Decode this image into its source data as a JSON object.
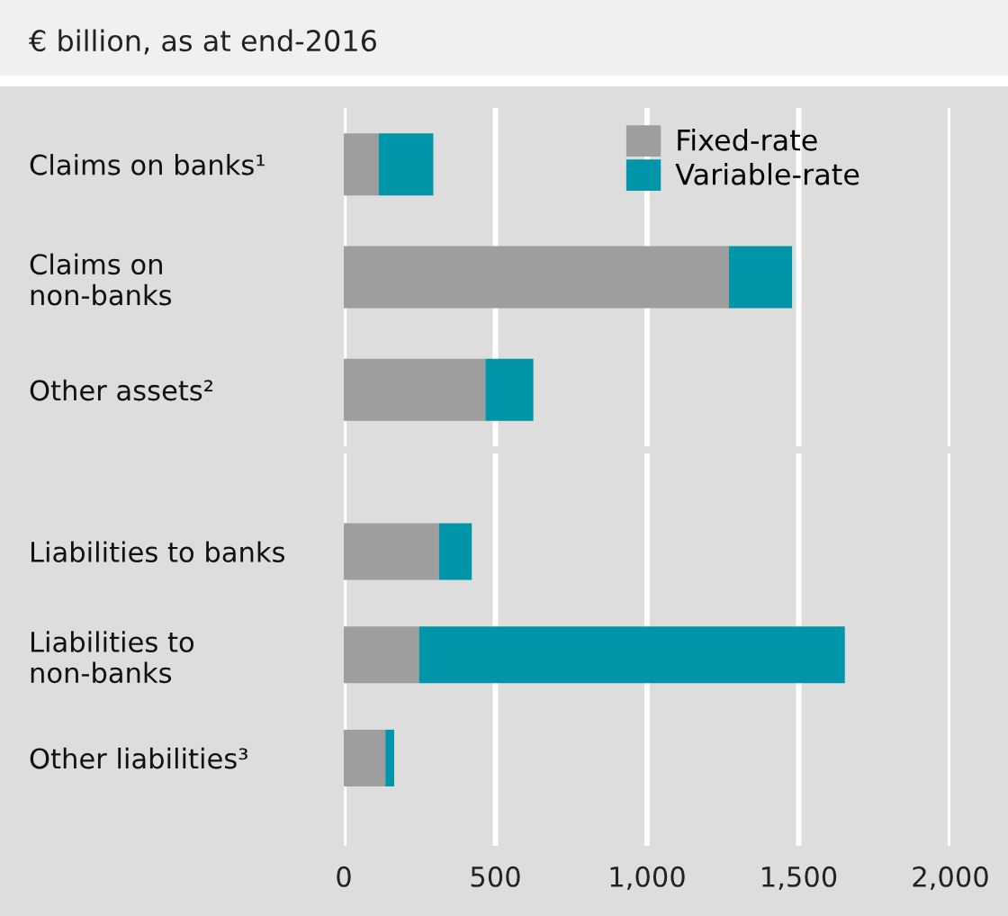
{
  "chart_data": [
    {
      "type": "bar",
      "orientation": "horizontal",
      "stacked": true,
      "title": "€ billion, as at end-2016",
      "categories": [
        "Claims on banks¹",
        "Claims on\nnon-banks",
        "Other assets²"
      ],
      "series": [
        {
          "name": "Fixed-rate",
          "color": "#9d9e9d",
          "values": [
            115,
            1270,
            467
          ]
        },
        {
          "name": "Variable-rate",
          "color": "#0095a8",
          "values": [
            180,
            208,
            158
          ]
        }
      ],
      "xlim": [
        0,
        2000
      ],
      "xticks": [
        0,
        500,
        1000,
        1500,
        2000
      ],
      "grid": "x",
      "legend": "top right",
      "tick_labels": "y"
    },
    {
      "type": "bar",
      "orientation": "horizontal",
      "stacked": true,
      "categories": [
        "Liabilities to banks",
        "Liabilities to\nnon-banks",
        "Other liabilities³"
      ],
      "series": [
        {
          "color": "#9d9e9d",
          "values": [
            314,
            248,
            137
          ]
        },
        {
          "color": "#0095a8",
          "values": [
            108,
            1404,
            29
          ]
        }
      ],
      "xlim": [
        0,
        2000
      ],
      "xticks": [
        {
          "value": 0,
          "label": "0"
        },
        {
          "value": 500,
          "label": "500"
        },
        {
          "value": 1000,
          "label": "1,000"
        },
        {
          "value": 1500,
          "label": "1,500"
        },
        {
          "value": 2000,
          "label": "2,000"
        }
      ],
      "grid": "x"
    }
  ]
}
